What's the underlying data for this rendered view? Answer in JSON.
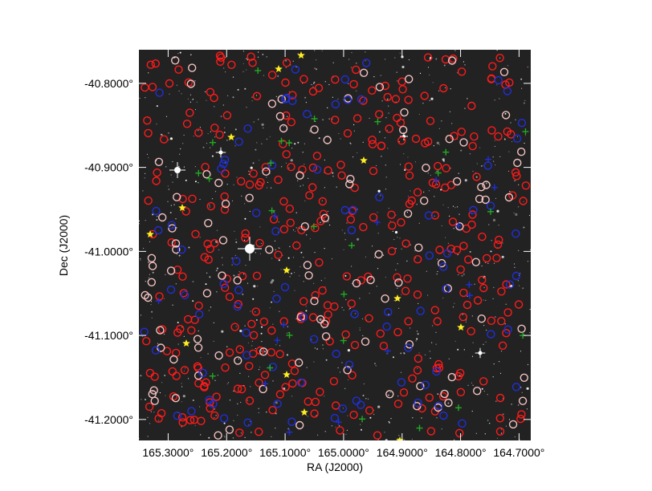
{
  "image_view": {
    "xlabel": "RA (J2000)",
    "ylabel": "Dec (J2000)",
    "ra_range": [
      165.35,
      164.68
    ],
    "dec_range": [
      -40.76,
      -41.225
    ],
    "x_ticks": [
      {
        "value": 165.3,
        "label": "165.3000°"
      },
      {
        "value": 165.2,
        "label": "165.2000°"
      },
      {
        "value": 165.1,
        "label": "165.1000°"
      },
      {
        "value": 165.0,
        "label": "165.0000°"
      },
      {
        "value": 164.9,
        "label": "164.9000°"
      },
      {
        "value": 164.8,
        "label": "164.8000°"
      },
      {
        "value": 164.7,
        "label": "164.7000°"
      }
    ],
    "y_ticks": [
      {
        "value": -40.8,
        "label": "-40.8000°"
      },
      {
        "value": -40.9,
        "label": "-40.9000°"
      },
      {
        "value": -41.0,
        "label": "-41.0000°"
      },
      {
        "value": -41.1,
        "label": "-41.1000°"
      },
      {
        "value": -41.2,
        "label": "-41.2000°"
      }
    ],
    "colors": {
      "sky": "#222222",
      "red_marker": "#ff1a1a",
      "pink_marker": "#f4c2c2",
      "blue_marker": "#1f2fd8",
      "green_marker": "#22aa22",
      "yellow_marker": "#ffee22",
      "star": "#ffffff"
    },
    "marker_icons": [
      "circle-marker",
      "cross-marker",
      "star-marker"
    ]
  }
}
